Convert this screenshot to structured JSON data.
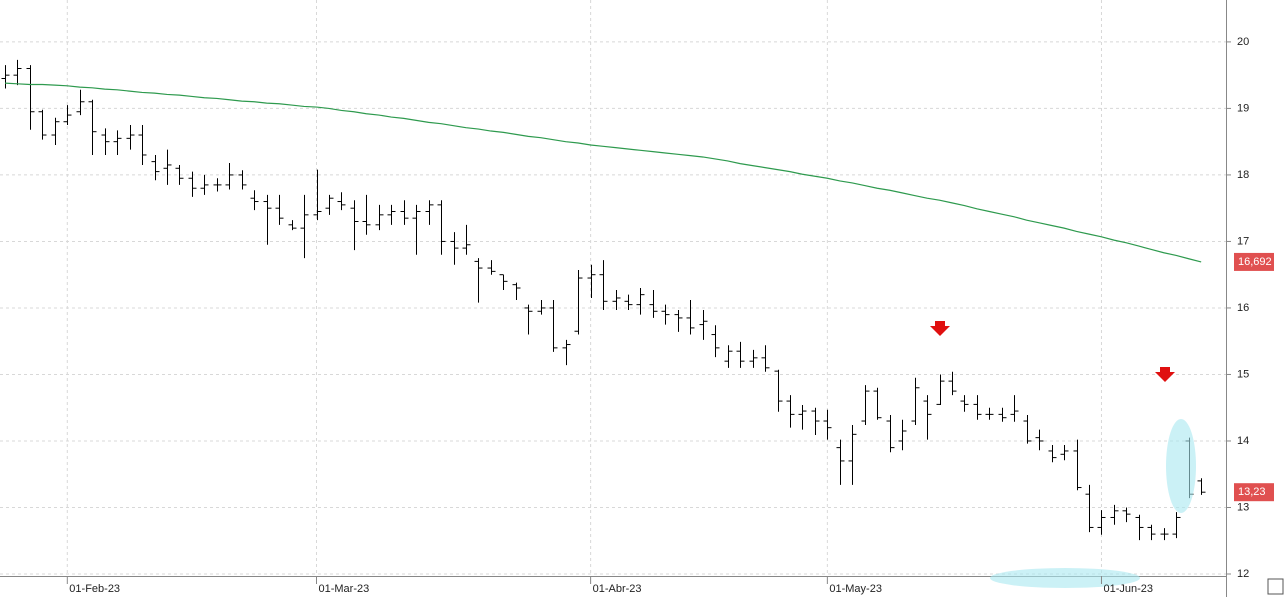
{
  "chart_data": {
    "type": "ohlc",
    "color": "#000000",
    "categories": [
      null,
      null,
      null,
      null,
      null,
      "01-Feb-23",
      null,
      null,
      null,
      null,
      null,
      null,
      null,
      null,
      null,
      null,
      null,
      null,
      null,
      null,
      null,
      null,
      null,
      null,
      null,
      "01-Mar-23",
      null,
      null,
      null,
      null,
      null,
      null,
      null,
      null,
      null,
      null,
      null,
      null,
      null,
      null,
      null,
      null,
      null,
      null,
      null,
      null,
      null,
      "01-Abr-23",
      null,
      null,
      null,
      null,
      null,
      null,
      null,
      null,
      null,
      null,
      null,
      null,
      null,
      null,
      null,
      null,
      null,
      null,
      "01-May-23",
      null,
      null,
      null,
      null,
      null,
      null,
      null,
      null,
      null,
      null,
      null,
      null,
      null,
      null,
      null,
      null,
      null,
      null,
      null,
      null,
      null,
      "01-Jun-23",
      null,
      null,
      null,
      null,
      null,
      null,
      null,
      null
    ],
    "open": [
      19.45,
      19.5,
      19.6,
      18.95,
      18.6,
      18.8,
      18.95,
      19.1,
      18.6,
      18.5,
      18.55,
      18.6,
      18.2,
      18.1,
      18.1,
      17.95,
      17.8,
      17.85,
      17.85,
      18.0,
      17.65,
      17.6,
      17.5,
      17.25,
      17.2,
      17.4,
      17.5,
      17.6,
      17.5,
      17.3,
      17.25,
      17.4,
      17.45,
      17.35,
      17.45,
      17.55,
      17.0,
      16.9,
      16.7,
      16.6,
      16.5,
      16.35,
      16.0,
      15.95,
      16.0,
      15.4,
      15.65,
      16.45,
      16.5,
      16.1,
      16.1,
      16.05,
      16.05,
      15.95,
      15.9,
      15.85,
      15.75,
      15.6,
      15.2,
      15.35,
      15.2,
      15.25,
      15.05,
      14.6,
      14.4,
      14.45,
      14.3,
      13.9,
      13.7,
      14.3,
      14.75,
      14.3,
      14.0,
      14.3,
      14.6,
      14.55,
      14.9,
      14.6,
      14.55,
      14.4,
      14.4,
      14.4,
      14.3,
      14.05,
      13.85,
      13.8,
      13.85,
      13.2,
      12.7,
      12.85,
      12.95,
      12.85,
      12.7,
      12.6,
      12.6,
      14.0,
      13.4
    ],
    "high": [
      19.65,
      19.73,
      19.65,
      18.98,
      18.86,
      19.05,
      19.28,
      19.13,
      18.7,
      18.67,
      18.75,
      18.75,
      18.3,
      18.38,
      18.15,
      18.05,
      18.0,
      17.95,
      18.18,
      18.07,
      17.77,
      17.7,
      17.7,
      17.32,
      17.7,
      18.08,
      17.7,
      17.74,
      17.62,
      17.7,
      17.55,
      17.55,
      17.62,
      17.55,
      17.62,
      17.62,
      17.14,
      17.25,
      16.75,
      16.72,
      16.5,
      16.38,
      16.05,
      16.12,
      16.12,
      15.52,
      16.57,
      16.65,
      16.72,
      16.27,
      16.2,
      16.3,
      16.27,
      16.05,
      15.97,
      16.12,
      15.97,
      15.74,
      15.44,
      15.49,
      15.37,
      15.44,
      15.07,
      14.69,
      14.54,
      14.5,
      14.47,
      14.02,
      14.24,
      14.84,
      14.8,
      14.39,
      14.32,
      14.95,
      14.69,
      15.0,
      15.04,
      14.69,
      14.69,
      14.5,
      14.5,
      14.69,
      14.39,
      14.17,
      13.94,
      13.94,
      14.02,
      13.34,
      12.96,
      13.04,
      13.0,
      12.89,
      12.74,
      12.69,
      12.93,
      14.05,
      13.44
    ],
    "low": [
      19.3,
      19.35,
      18.68,
      18.53,
      18.45,
      18.75,
      18.9,
      18.3,
      18.3,
      18.3,
      18.38,
      18.15,
      17.92,
      17.85,
      17.85,
      17.67,
      17.7,
      17.75,
      17.78,
      17.78,
      17.47,
      16.95,
      17.25,
      17.17,
      16.75,
      17.32,
      17.4,
      17.47,
      16.87,
      17.1,
      17.17,
      17.25,
      17.25,
      16.8,
      17.25,
      16.8,
      16.65,
      16.8,
      16.08,
      16.5,
      16.27,
      16.12,
      15.6,
      15.9,
      15.34,
      15.14,
      15.6,
      16.15,
      15.97,
      15.97,
      15.97,
      15.9,
      15.85,
      15.75,
      15.64,
      15.6,
      15.52,
      15.26,
      15.1,
      15.1,
      15.1,
      15.04,
      14.44,
      14.2,
      14.17,
      14.09,
      14.02,
      13.34,
      13.34,
      14.24,
      14.32,
      13.83,
      13.86,
      14.24,
      14.02,
      14.54,
      14.69,
      14.44,
      14.32,
      14.32,
      14.29,
      14.29,
      13.96,
      13.86,
      13.68,
      13.71,
      13.26,
      12.63,
      12.59,
      12.74,
      12.78,
      12.51,
      12.51,
      12.51,
      12.54,
      13.14,
      13.19
    ],
    "close": [
      19.5,
      19.6,
      18.95,
      18.6,
      18.8,
      18.9,
      19.1,
      18.65,
      18.5,
      18.55,
      18.6,
      18.3,
      18.05,
      18.15,
      17.95,
      17.8,
      17.85,
      17.85,
      18.0,
      17.85,
      17.6,
      17.5,
      17.35,
      17.2,
      17.4,
      17.45,
      17.65,
      17.55,
      17.3,
      17.25,
      17.4,
      17.45,
      17.35,
      17.45,
      17.55,
      17.0,
      16.9,
      16.95,
      16.6,
      16.55,
      16.4,
      16.3,
      15.95,
      16.0,
      15.4,
      15.45,
      16.45,
      16.5,
      16.1,
      16.15,
      16.05,
      16.2,
      15.95,
      15.9,
      15.85,
      15.7,
      15.8,
      15.4,
      15.35,
      15.2,
      15.25,
      15.1,
      14.6,
      14.4,
      14.45,
      14.3,
      14.2,
      13.7,
      14.1,
      14.75,
      14.35,
      13.9,
      14.15,
      14.8,
      14.4,
      14.9,
      14.75,
      14.55,
      14.4,
      14.4,
      14.35,
      14.45,
      14.0,
      14.0,
      13.75,
      13.85,
      13.3,
      12.7,
      12.85,
      12.95,
      12.9,
      12.7,
      12.6,
      12.6,
      12.85,
      13.2,
      13.23
    ],
    "close_label": "13,23",
    "overlays": [
      {
        "type": "line",
        "color": "#2e9a4e",
        "last_label": "16,692",
        "values": [
          19.38,
          19.37,
          19.36,
          19.36,
          19.35,
          19.34,
          19.32,
          19.31,
          19.29,
          19.28,
          19.26,
          19.24,
          19.23,
          19.21,
          19.2,
          19.18,
          19.16,
          19.15,
          19.13,
          19.11,
          19.1,
          19.08,
          19.07,
          19.05,
          19.03,
          19.02,
          19.0,
          18.97,
          18.95,
          18.92,
          18.9,
          18.87,
          18.85,
          18.82,
          18.79,
          18.77,
          18.74,
          18.71,
          18.69,
          18.66,
          18.64,
          18.61,
          18.58,
          18.56,
          18.53,
          18.5,
          18.48,
          18.45,
          18.43,
          18.41,
          18.39,
          18.37,
          18.35,
          18.33,
          18.31,
          18.29,
          18.27,
          18.24,
          18.21,
          18.17,
          18.14,
          18.11,
          18.08,
          18.05,
          18.01,
          17.98,
          17.95,
          17.91,
          17.88,
          17.84,
          17.8,
          17.77,
          17.73,
          17.69,
          17.65,
          17.62,
          17.58,
          17.54,
          17.49,
          17.45,
          17.41,
          17.37,
          17.32,
          17.28,
          17.24,
          17.2,
          17.15,
          17.11,
          17.07,
          17.02,
          16.98,
          16.93,
          16.88,
          16.83,
          16.79,
          16.74,
          16.692
        ]
      }
    ],
    "ylim": [
      11.97,
      20.63
    ],
    "yticks": [
      12,
      13,
      14,
      15,
      16,
      17,
      18,
      19,
      20
    ],
    "grid": true
  }
}
